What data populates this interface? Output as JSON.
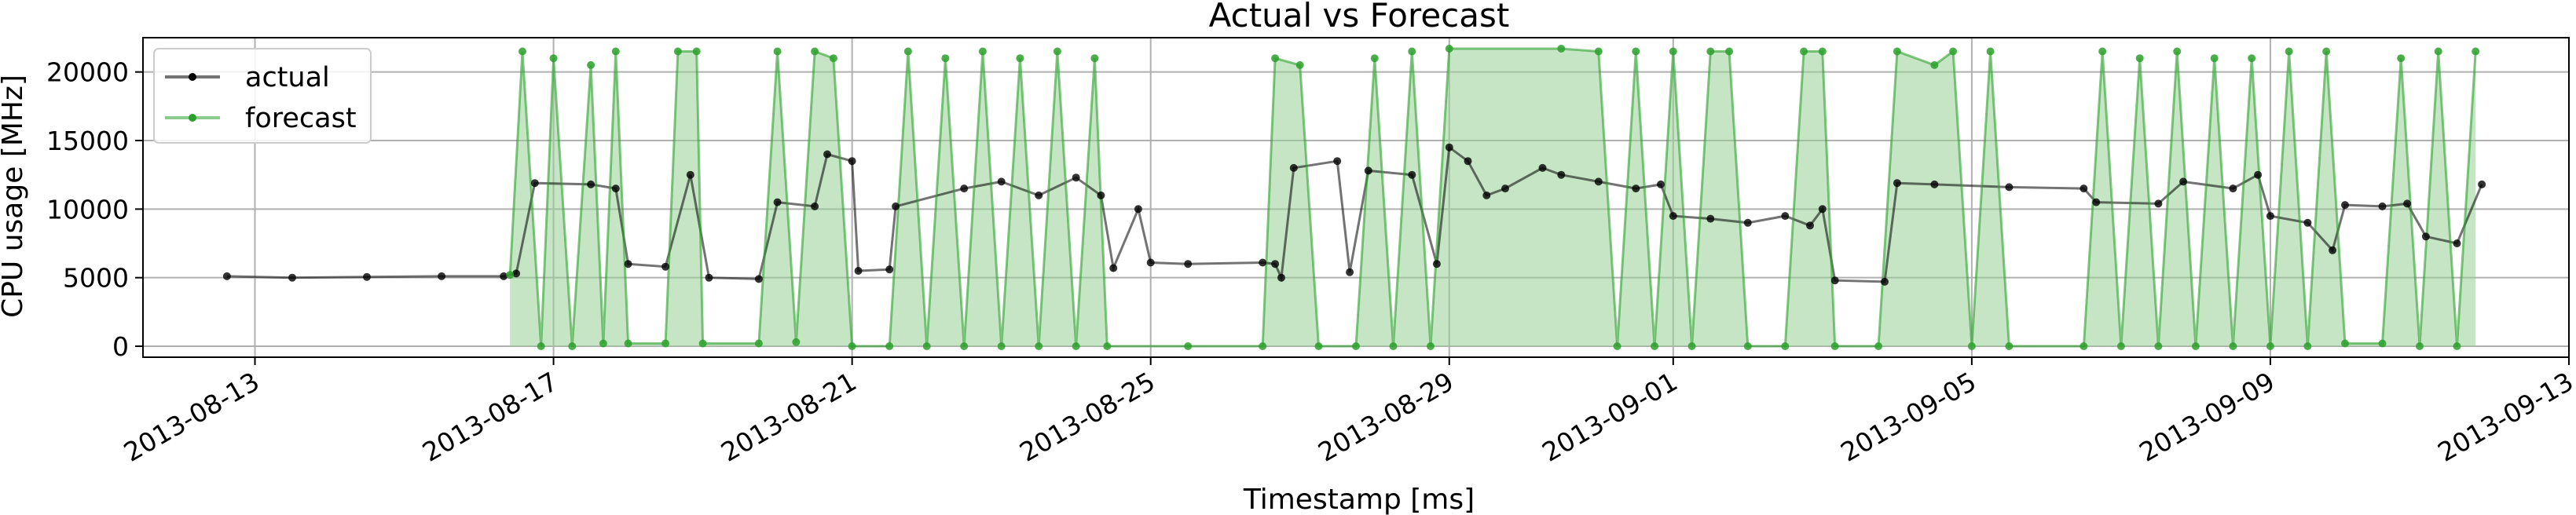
{
  "chart_data": {
    "type": "line",
    "title": "Actual vs Forecast",
    "xlabel": "Timestamp [ms]",
    "ylabel": "CPU usage [MHz]",
    "xlim": [
      "2013-08-11T12:00",
      "2013-09-13T00:00"
    ],
    "ylim": [
      -800,
      22500
    ],
    "x_ticks": [
      "2013-08-13",
      "2013-08-17",
      "2013-08-21",
      "2013-08-25",
      "2013-08-29",
      "2013-09-01",
      "2013-09-05",
      "2013-09-09",
      "2013-09-13"
    ],
    "y_ticks": [
      0,
      5000,
      10000,
      15000,
      20000
    ],
    "grid": true,
    "legend_position": "top-left",
    "colors": {
      "actual": "#000000",
      "forecast": "#2ca02c",
      "actual_fill": "#b3b3b3",
      "forecast_fill": "#96d096"
    },
    "series": [
      {
        "name": "actual",
        "color": "#000000",
        "points": [
          [
            "2013-08-12T15:00",
            5100
          ],
          [
            "2013-08-13T12:00",
            5000
          ],
          [
            "2013-08-14T12:00",
            5050
          ],
          [
            "2013-08-15T12:00",
            5100
          ],
          [
            "2013-08-16T08:00",
            5100
          ],
          [
            "2013-08-16T12:00",
            5300
          ],
          [
            "2013-08-16T18:00",
            11900
          ],
          [
            "2013-08-17T12:00",
            11800
          ],
          [
            "2013-08-17T20:00",
            11500
          ],
          [
            "2013-08-18T00:00",
            6000
          ],
          [
            "2013-08-18T12:00",
            5800
          ],
          [
            "2013-08-18T20:00",
            12500
          ],
          [
            "2013-08-19T02:00",
            5000
          ],
          [
            "2013-08-19T18:00",
            4900
          ],
          [
            "2013-08-20T00:00",
            10500
          ],
          [
            "2013-08-20T12:00",
            10200
          ],
          [
            "2013-08-20T16:00",
            14000
          ],
          [
            "2013-08-21T00:00",
            13500
          ],
          [
            "2013-08-21T02:00",
            5500
          ],
          [
            "2013-08-21T12:00",
            5600
          ],
          [
            "2013-08-21T14:00",
            10200
          ],
          [
            "2013-08-22T12:00",
            11500
          ],
          [
            "2013-08-23T00:00",
            12000
          ],
          [
            "2013-08-23T12:00",
            11000
          ],
          [
            "2013-08-24T00:00",
            12300
          ],
          [
            "2013-08-24T08:00",
            11000
          ],
          [
            "2013-08-24T12:00",
            5700
          ],
          [
            "2013-08-24T20:00",
            10000
          ],
          [
            "2013-08-25T00:00",
            6100
          ],
          [
            "2013-08-25T12:00",
            6000
          ],
          [
            "2013-08-26T12:00",
            6100
          ],
          [
            "2013-08-26T16:00",
            6000
          ],
          [
            "2013-08-26T18:00",
            5000
          ],
          [
            "2013-08-26T22:00",
            13000
          ],
          [
            "2013-08-27T12:00",
            13500
          ],
          [
            "2013-08-27T16:00",
            5400
          ],
          [
            "2013-08-27T22:00",
            12800
          ],
          [
            "2013-08-28T12:00",
            12500
          ],
          [
            "2013-08-28T20:00",
            6000
          ],
          [
            "2013-08-29T00:00",
            14500
          ],
          [
            "2013-08-29T06:00",
            13500
          ],
          [
            "2013-08-29T12:00",
            11000
          ],
          [
            "2013-08-29T18:00",
            11500
          ],
          [
            "2013-08-30T06:00",
            13000
          ],
          [
            "2013-08-30T12:00",
            12500
          ],
          [
            "2013-08-31T00:00",
            12000
          ],
          [
            "2013-08-31T12:00",
            11500
          ],
          [
            "2013-08-31T20:00",
            11800
          ],
          [
            "2013-09-01T00:00",
            9500
          ],
          [
            "2013-09-01T12:00",
            9300
          ],
          [
            "2013-09-02T00:00",
            9000
          ],
          [
            "2013-09-02T12:00",
            9500
          ],
          [
            "2013-09-02T20:00",
            8800
          ],
          [
            "2013-09-03T00:00",
            10000
          ],
          [
            "2013-09-03T04:00",
            4800
          ],
          [
            "2013-09-03T20:00",
            4700
          ],
          [
            "2013-09-04T00:00",
            11900
          ],
          [
            "2013-09-04T12:00",
            11800
          ],
          [
            "2013-09-05T12:00",
            11600
          ],
          [
            "2013-09-06T12:00",
            11500
          ],
          [
            "2013-09-06T16:00",
            10500
          ],
          [
            "2013-09-07T12:00",
            10400
          ],
          [
            "2013-09-07T20:00",
            12000
          ],
          [
            "2013-09-08T12:00",
            11500
          ],
          [
            "2013-09-08T20:00",
            12500
          ],
          [
            "2013-09-09T00:00",
            9500
          ],
          [
            "2013-09-09T12:00",
            9000
          ],
          [
            "2013-09-09T20:00",
            7000
          ],
          [
            "2013-09-10T00:00",
            10300
          ],
          [
            "2013-09-10T12:00",
            10200
          ],
          [
            "2013-09-10T20:00",
            10400
          ],
          [
            "2013-09-11T02:00",
            8000
          ],
          [
            "2013-09-11T12:00",
            7500
          ],
          [
            "2013-09-11T20:00",
            11800
          ]
        ]
      },
      {
        "name": "forecast",
        "color": "#2ca02c",
        "points": [
          [
            "2013-08-16T10:00",
            5200
          ],
          [
            "2013-08-16T14:00",
            21500
          ],
          [
            "2013-08-16T20:00",
            0
          ],
          [
            "2013-08-17T00:00",
            21000
          ],
          [
            "2013-08-17T06:00",
            0
          ],
          [
            "2013-08-17T12:00",
            20500
          ],
          [
            "2013-08-17T16:00",
            200
          ],
          [
            "2013-08-17T20:00",
            21500
          ],
          [
            "2013-08-18T00:00",
            200
          ],
          [
            "2013-08-18T12:00",
            200
          ],
          [
            "2013-08-18T16:00",
            21500
          ],
          [
            "2013-08-18T22:00",
            21500
          ],
          [
            "2013-08-19T00:00",
            200
          ],
          [
            "2013-08-19T18:00",
            200
          ],
          [
            "2013-08-20T00:00",
            21500
          ],
          [
            "2013-08-20T06:00",
            300
          ],
          [
            "2013-08-20T12:00",
            21500
          ],
          [
            "2013-08-20T18:00",
            21000
          ],
          [
            "2013-08-21T00:00",
            0
          ],
          [
            "2013-08-21T12:00",
            0
          ],
          [
            "2013-08-21T18:00",
            21500
          ],
          [
            "2013-08-22T00:00",
            0
          ],
          [
            "2013-08-22T06:00",
            21000
          ],
          [
            "2013-08-22T12:00",
            0
          ],
          [
            "2013-08-22T18:00",
            21500
          ],
          [
            "2013-08-23T00:00",
            0
          ],
          [
            "2013-08-23T06:00",
            21000
          ],
          [
            "2013-08-23T12:00",
            0
          ],
          [
            "2013-08-23T18:00",
            21500
          ],
          [
            "2013-08-24T00:00",
            0
          ],
          [
            "2013-08-24T06:00",
            21000
          ],
          [
            "2013-08-24T10:00",
            0
          ],
          [
            "2013-08-25T12:00",
            0
          ],
          [
            "2013-08-26T12:00",
            0
          ],
          [
            "2013-08-26T16:00",
            21000
          ],
          [
            "2013-08-27T00:00",
            20500
          ],
          [
            "2013-08-27T06:00",
            0
          ],
          [
            "2013-08-27T18:00",
            0
          ],
          [
            "2013-08-28T00:00",
            21000
          ],
          [
            "2013-08-28T06:00",
            0
          ],
          [
            "2013-08-28T12:00",
            21500
          ],
          [
            "2013-08-28T18:00",
            0
          ],
          [
            "2013-08-29T00:00",
            21700
          ],
          [
            "2013-08-30T12:00",
            21700
          ],
          [
            "2013-08-31T00:00",
            21500
          ],
          [
            "2013-08-31T06:00",
            0
          ],
          [
            "2013-08-31T12:00",
            21500
          ],
          [
            "2013-08-31T18:00",
            0
          ],
          [
            "2013-09-01T00:00",
            21500
          ],
          [
            "2013-09-01T06:00",
            0
          ],
          [
            "2013-09-01T12:00",
            21500
          ],
          [
            "2013-09-01T18:00",
            21500
          ],
          [
            "2013-09-02T00:00",
            0
          ],
          [
            "2013-09-02T12:00",
            0
          ],
          [
            "2013-09-02T18:00",
            21500
          ],
          [
            "2013-09-03T00:00",
            21500
          ],
          [
            "2013-09-03T04:00",
            0
          ],
          [
            "2013-09-03T18:00",
            0
          ],
          [
            "2013-09-04T00:00",
            21500
          ],
          [
            "2013-09-04T12:00",
            20500
          ],
          [
            "2013-09-04T18:00",
            21500
          ],
          [
            "2013-09-05T00:00",
            0
          ],
          [
            "2013-09-05T06:00",
            21500
          ],
          [
            "2013-09-05T12:00",
            0
          ],
          [
            "2013-09-06T12:00",
            0
          ],
          [
            "2013-09-06T18:00",
            21500
          ],
          [
            "2013-09-07T00:00",
            0
          ],
          [
            "2013-09-07T06:00",
            21000
          ],
          [
            "2013-09-07T12:00",
            0
          ],
          [
            "2013-09-07T18:00",
            21500
          ],
          [
            "2013-09-08T00:00",
            0
          ],
          [
            "2013-09-08T06:00",
            21000
          ],
          [
            "2013-09-08T12:00",
            0
          ],
          [
            "2013-09-08T18:00",
            21000
          ],
          [
            "2013-09-09T00:00",
            0
          ],
          [
            "2013-09-09T06:00",
            21500
          ],
          [
            "2013-09-09T12:00",
            0
          ],
          [
            "2013-09-09T18:00",
            21500
          ],
          [
            "2013-09-10T00:00",
            200
          ],
          [
            "2013-09-10T12:00",
            200
          ],
          [
            "2013-09-10T18:00",
            21000
          ],
          [
            "2013-09-11T00:00",
            0
          ],
          [
            "2013-09-11T06:00",
            21500
          ],
          [
            "2013-09-11T12:00",
            0
          ],
          [
            "2013-09-11T18:00",
            21500
          ]
        ]
      }
    ]
  }
}
